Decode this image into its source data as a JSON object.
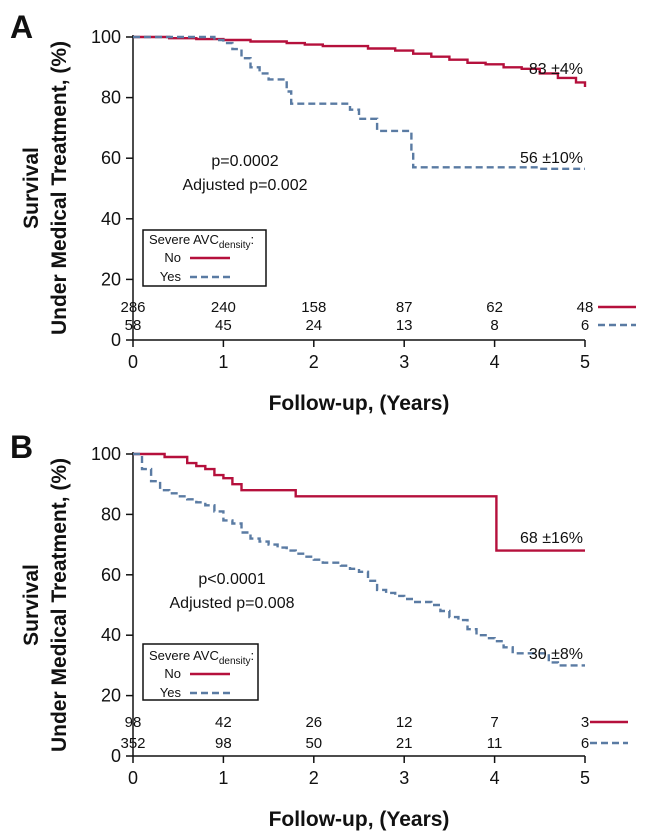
{
  "chart_data": [
    {
      "type": "line",
      "panel_label": "A",
      "ylabel": [
        "Survival",
        "Under Medical Treatment, (%)"
      ],
      "xlabel": "Follow-up, (Years)",
      "xlim": [
        0,
        5
      ],
      "ylim": [
        0,
        100
      ],
      "xticks": [
        "0",
        "1",
        "2",
        "3",
        "4",
        "5"
      ],
      "yticks": [
        "0",
        "20",
        "40",
        "60",
        "80",
        "100"
      ],
      "annotation": [
        "p=0.0002",
        "Adjusted p=0.002"
      ],
      "legend": {
        "title": "Severe AVC",
        "title_sub": "density",
        "title_suffix": ":",
        "position": "bottom-left"
      },
      "series": [
        {
          "name": "No",
          "color": "#b5103c",
          "dash": "solid",
          "end_label": "83 ±4%",
          "x": [
            0,
            0.4,
            0.5,
            0.7,
            0.8,
            1.0,
            1.1,
            1.3,
            1.5,
            1.7,
            1.9,
            2.1,
            2.4,
            2.6,
            2.9,
            3.1,
            3.3,
            3.5,
            3.7,
            3.9,
            4.1,
            4.3,
            4.5,
            4.7,
            4.9,
            5.0
          ],
          "y": [
            100,
            99.6,
            99.6,
            99.3,
            99.3,
            99,
            99,
            98.5,
            98.5,
            98,
            97.5,
            97,
            97,
            96.2,
            95.5,
            94.5,
            93.5,
            92.5,
            91.5,
            91,
            90,
            89.5,
            88,
            86.5,
            85,
            83.5
          ],
          "at_risk": [
            "286",
            "240",
            "158",
            "87",
            "62",
            "48"
          ]
        },
        {
          "name": "Yes",
          "color": "#5a7ba3",
          "dash": "dashed",
          "end_label": "56 ±10%",
          "x": [
            0,
            0.8,
            0.9,
            1.0,
            1.1,
            1.2,
            1.3,
            1.4,
            1.5,
            1.7,
            1.75,
            1.95,
            2.15,
            2.4,
            2.5,
            2.7,
            2.9,
            3.05,
            3.08,
            3.1,
            3.2,
            3.9,
            4.5,
            5.0
          ],
          "y": [
            100,
            100,
            99,
            98,
            96,
            93,
            90,
            88,
            86,
            82,
            78,
            78,
            78,
            76,
            73,
            69,
            69,
            69,
            62,
            57,
            57,
            57,
            56.5,
            56.5
          ],
          "at_risk": [
            "58",
            "45",
            "24",
            "13",
            "8",
            "6"
          ]
        }
      ]
    },
    {
      "type": "line",
      "panel_label": "B",
      "ylabel": [
        "Survival",
        "Under Medical Treatment, (%)"
      ],
      "xlabel": "Follow-up, (Years)",
      "xlim": [
        0,
        5
      ],
      "ylim": [
        0,
        100
      ],
      "xticks": [
        "0",
        "1",
        "2",
        "3",
        "4",
        "5"
      ],
      "yticks": [
        "0",
        "20",
        "40",
        "60",
        "80",
        "100"
      ],
      "annotation": [
        "p<0.0001",
        "Adjusted p=0.008"
      ],
      "legend": {
        "title": "Severe AVC",
        "title_sub": "density",
        "title_suffix": ":",
        "position": "bottom-left"
      },
      "series": [
        {
          "name": "No",
          "color": "#b5103c",
          "dash": "solid",
          "end_label": "68 ±16%",
          "x": [
            0,
            0.35,
            0.5,
            0.6,
            0.7,
            0.8,
            0.9,
            1.0,
            1.1,
            1.2,
            1.4,
            1.8,
            2.5,
            3.5,
            4.0,
            4.02,
            4.5,
            5.0
          ],
          "y": [
            100,
            99,
            99,
            97,
            96,
            95,
            93,
            92,
            90,
            88,
            88,
            86,
            86,
            86,
            86,
            68,
            68,
            68
          ],
          "at_risk": [
            "98",
            "42",
            "26",
            "12",
            "7",
            "3"
          ]
        },
        {
          "name": "Yes",
          "color": "#5a7ba3",
          "dash": "dashed",
          "end_label": "30 ±8%",
          "x": [
            0,
            0.1,
            0.2,
            0.3,
            0.4,
            0.5,
            0.6,
            0.7,
            0.8,
            0.9,
            1.0,
            1.1,
            1.2,
            1.3,
            1.4,
            1.5,
            1.6,
            1.7,
            1.8,
            1.9,
            2.0,
            2.1,
            2.2,
            2.3,
            2.4,
            2.5,
            2.6,
            2.7,
            2.8,
            2.9,
            3.0,
            3.1,
            3.2,
            3.3,
            3.4,
            3.5,
            3.6,
            3.7,
            3.8,
            3.9,
            4.0,
            4.1,
            4.2,
            4.3,
            4.4,
            4.5,
            4.6,
            4.7,
            5.0
          ],
          "y": [
            100,
            95,
            91,
            88,
            87,
            86,
            85,
            84,
            83,
            81,
            78,
            77,
            74,
            72,
            71,
            70,
            69,
            68,
            67,
            66,
            65,
            64,
            64,
            63,
            62,
            61,
            58,
            55,
            54,
            53,
            52,
            51,
            51,
            50,
            48,
            46,
            45,
            42,
            40,
            39,
            38,
            36,
            34,
            34,
            34,
            34,
            31,
            30,
            30
          ],
          "at_risk": [
            "352",
            "98",
            "50",
            "21",
            "11",
            "6"
          ]
        }
      ]
    }
  ]
}
